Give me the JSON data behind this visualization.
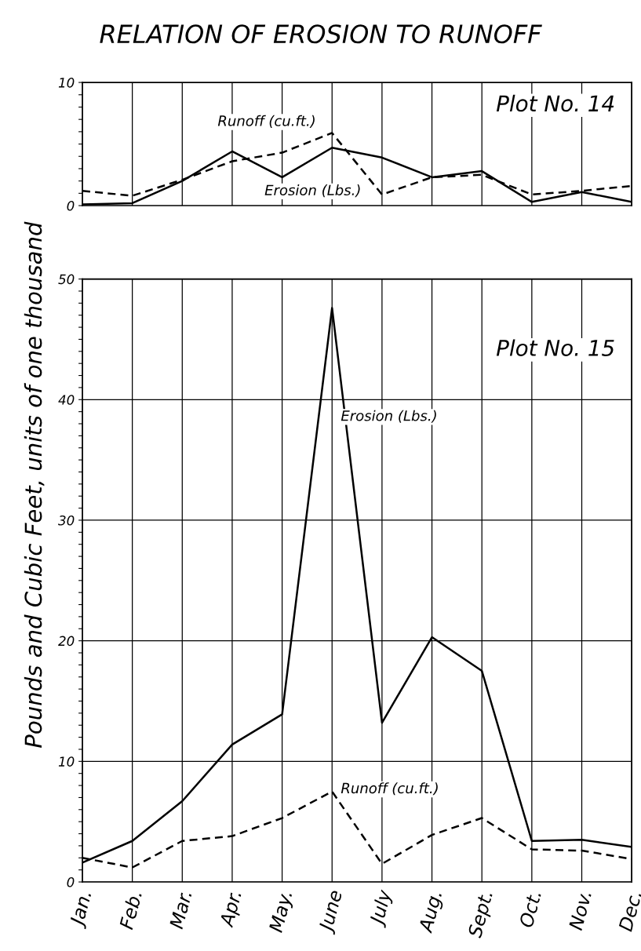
{
  "chart_data": [
    {
      "type": "line",
      "title": "RELATION OF EROSION TO RUNOFF",
      "ylabel": "Pounds and Cubic Feet, units of one thousand",
      "annotations": [
        "Plot No. 14"
      ],
      "categories": [
        null,
        null,
        null,
        null,
        null,
        null,
        null,
        null,
        null,
        null,
        null,
        null
      ],
      "series": [
        {
          "name": "Erosion (Lbs.)",
          "color": "#000000",
          "line_style": "solid",
          "values": [
            0.1,
            0.2,
            2.0,
            4.4,
            2.3,
            4.7,
            3.9,
            2.3,
            2.8,
            0.3,
            1.1,
            0.3
          ]
        },
        {
          "name": "Runoff (cu.ft.)",
          "color": "#000000",
          "line_style": "dashed",
          "values": [
            1.2,
            0.8,
            2.1,
            3.6,
            4.3,
            5.9,
            0.9,
            2.3,
            2.5,
            0.9,
            1.2,
            1.6
          ]
        }
      ],
      "ylim": [
        0,
        10
      ],
      "yticks": [
        0,
        {
          "value": 1,
          "label": null
        },
        {
          "value": 2,
          "label": null
        },
        {
          "value": 3,
          "label": null
        },
        {
          "value": 4,
          "label": null
        },
        {
          "value": 5,
          "label": null
        },
        {
          "value": 6,
          "label": null
        },
        {
          "value": 7,
          "label": null
        },
        {
          "value": 8,
          "label": null
        },
        {
          "value": 9,
          "label": null
        },
        10
      ],
      "grid": "x",
      "tick_labels": "y",
      "legend": false,
      "marker": "none"
    },
    {
      "type": "line",
      "annotations": [
        "Plot No. 15"
      ],
      "categories": [
        "Jan.",
        "Feb.",
        "Mar.",
        "Apr.",
        "May.",
        "June",
        "July",
        "Aug.",
        "Sept.",
        "Oct.",
        "Nov.",
        "Dec."
      ],
      "series": [
        {
          "name": "Erosion (Lbs.)",
          "color": "#000000",
          "line_style": "solid",
          "values": [
            1.6,
            3.4,
            6.7,
            11.4,
            13.9,
            47.6,
            13.2,
            20.3,
            17.5,
            3.4,
            3.5,
            2.9
          ]
        },
        {
          "name": "Runoff (cu.ft.)",
          "color": "#000000",
          "line_style": "dashed",
          "values": [
            2.0,
            1.2,
            3.4,
            3.8,
            5.3,
            7.5,
            1.5,
            3.9,
            5.3,
            2.7,
            2.6,
            1.9
          ]
        }
      ],
      "ylim": [
        0,
        50
      ],
      "yticks": [
        0,
        {
          "value": 1,
          "label": null
        },
        {
          "value": 2,
          "label": null
        },
        {
          "value": 3,
          "label": null
        },
        {
          "value": 4,
          "label": null
        },
        {
          "value": 5,
          "label": null
        },
        {
          "value": 6,
          "label": null
        },
        {
          "value": 7,
          "label": null
        },
        {
          "value": 8,
          "label": null
        },
        {
          "value": 9,
          "label": null
        },
        10,
        {
          "value": 11,
          "label": null
        },
        {
          "value": 12,
          "label": null
        },
        {
          "value": 13,
          "label": null
        },
        {
          "value": 14,
          "label": null
        },
        {
          "value": 15,
          "label": null
        },
        {
          "value": 16,
          "label": null
        },
        {
          "value": 17,
          "label": null
        },
        {
          "value": 18,
          "label": null
        },
        {
          "value": 19,
          "label": null
        },
        20,
        {
          "value": 21,
          "label": null
        },
        {
          "value": 22,
          "label": null
        },
        {
          "value": 23,
          "label": null
        },
        {
          "value": 24,
          "label": null
        },
        {
          "value": 25,
          "label": null
        },
        {
          "value": 26,
          "label": null
        },
        {
          "value": 27,
          "label": null
        },
        {
          "value": 28,
          "label": null
        },
        {
          "value": 29,
          "label": null
        },
        30,
        {
          "value": 31,
          "label": null
        },
        {
          "value": 32,
          "label": null
        },
        {
          "value": 33,
          "label": null
        },
        {
          "value": 34,
          "label": null
        },
        {
          "value": 35,
          "label": null
        },
        {
          "value": 36,
          "label": null
        },
        {
          "value": 37,
          "label": null
        },
        {
          "value": 38,
          "label": null
        },
        {
          "value": 39,
          "label": null
        },
        40,
        {
          "value": 41,
          "label": null
        },
        {
          "value": 42,
          "label": null
        },
        {
          "value": 43,
          "label": null
        },
        {
          "value": 44,
          "label": null
        },
        {
          "value": 45,
          "label": null
        },
        {
          "value": 46,
          "label": null
        },
        {
          "value": 47,
          "label": null
        },
        {
          "value": 48,
          "label": null
        },
        {
          "value": 49,
          "label": null
        },
        50
      ],
      "grid": true,
      "legend": false,
      "marker": "none"
    }
  ]
}
